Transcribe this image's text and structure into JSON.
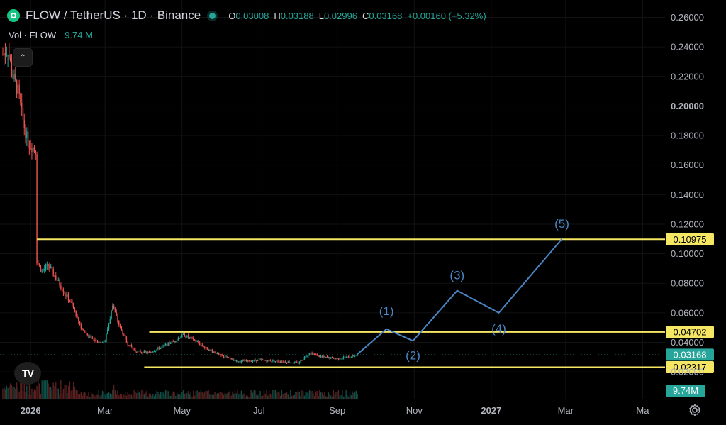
{
  "header": {
    "symbol_title": "FLOW / TetherUS · 1D · Binance",
    "ohlc": [
      {
        "key": "O",
        "value": "0.03008"
      },
      {
        "key": "H",
        "value": "0.03188"
      },
      {
        "key": "L",
        "value": "0.02996"
      },
      {
        "key": "C",
        "value": "0.03168"
      },
      {
        "key": "",
        "value": "+0.00160 (+5.32%)"
      }
    ],
    "volume_label": "Vol · FLOW",
    "volume_value": "9.74 M"
  },
  "colors": {
    "up": "#26a69a",
    "down": "#ef5350",
    "level": "#f5e663",
    "wave": "#4a86c5",
    "grid": "#121212",
    "axis_text": "#b2b5be"
  },
  "icons": {
    "logo": "flow-coin-logo",
    "collapse": "chevron-up-icon",
    "brand": "tradingview-logo",
    "settings": "gear-icon"
  },
  "chart_data": {
    "type": "candlestick",
    "price_axis": {
      "ylim": [
        0.0,
        0.27
      ],
      "ticks": [
        "0.26000",
        "0.24000",
        "0.22000",
        "0.20000",
        "0.18000",
        "0.16000",
        "0.14000",
        "0.12000",
        "0.10000",
        "0.08000",
        "0.06000",
        "0.04000",
        "0.02000"
      ],
      "tick_values": [
        0.26,
        0.24,
        0.22,
        0.2,
        0.18,
        0.16,
        0.14,
        0.12,
        0.1,
        0.08,
        0.06,
        0.04,
        0.02
      ]
    },
    "time_axis": {
      "start": "2025-12-10",
      "end": "2027-05-15",
      "labels": [
        {
          "text": "2026",
          "date": "2026-01-01",
          "bold": true
        },
        {
          "text": "Mar",
          "date": "2026-03-01"
        },
        {
          "text": "May",
          "date": "2026-05-01"
        },
        {
          "text": "Jul",
          "date": "2026-07-01"
        },
        {
          "text": "Sep",
          "date": "2026-09-01"
        },
        {
          "text": "Nov",
          "date": "2026-11-01"
        },
        {
          "text": "2027",
          "date": "2027-01-01",
          "bold": true
        },
        {
          "text": "Mar",
          "date": "2027-03-01"
        },
        {
          "text": "Ma",
          "date": "2027-05-01"
        }
      ]
    },
    "price_path": [
      {
        "date": "2025-12-10",
        "price": 0.235
      },
      {
        "date": "2025-12-14",
        "price": 0.238
      },
      {
        "date": "2025-12-18",
        "price": 0.22
      },
      {
        "date": "2025-12-22",
        "price": 0.21
      },
      {
        "date": "2025-12-26",
        "price": 0.19
      },
      {
        "date": "2025-12-30",
        "price": 0.175
      },
      {
        "date": "2026-01-03",
        "price": 0.172
      },
      {
        "date": "2026-01-05",
        "price": 0.17
      },
      {
        "date": "2026-01-06",
        "price": 0.095
      },
      {
        "date": "2026-01-10",
        "price": 0.088
      },
      {
        "date": "2026-01-15",
        "price": 0.092
      },
      {
        "date": "2026-01-20",
        "price": 0.085
      },
      {
        "date": "2026-01-27",
        "price": 0.075
      },
      {
        "date": "2026-02-03",
        "price": 0.065
      },
      {
        "date": "2026-02-10",
        "price": 0.05
      },
      {
        "date": "2026-02-17",
        "price": 0.043
      },
      {
        "date": "2026-02-24",
        "price": 0.04
      },
      {
        "date": "2026-03-01",
        "price": 0.041
      },
      {
        "date": "2026-03-07",
        "price": 0.065
      },
      {
        "date": "2026-03-12",
        "price": 0.052
      },
      {
        "date": "2026-03-18",
        "price": 0.04
      },
      {
        "date": "2026-03-25",
        "price": 0.034
      },
      {
        "date": "2026-04-05",
        "price": 0.033
      },
      {
        "date": "2026-04-15",
        "price": 0.037
      },
      {
        "date": "2026-04-25",
        "price": 0.041
      },
      {
        "date": "2026-05-02",
        "price": 0.045
      },
      {
        "date": "2026-05-10",
        "price": 0.042
      },
      {
        "date": "2026-05-20",
        "price": 0.036
      },
      {
        "date": "2026-06-01",
        "price": 0.031
      },
      {
        "date": "2026-06-15",
        "price": 0.027
      },
      {
        "date": "2026-07-01",
        "price": 0.028
      },
      {
        "date": "2026-07-20",
        "price": 0.027
      },
      {
        "date": "2026-08-01",
        "price": 0.026
      },
      {
        "date": "2026-08-10",
        "price": 0.033
      },
      {
        "date": "2026-08-20",
        "price": 0.03
      },
      {
        "date": "2026-09-01",
        "price": 0.029
      },
      {
        "date": "2026-09-10",
        "price": 0.03
      },
      {
        "date": "2026-09-17",
        "price": 0.0317
      }
    ],
    "volume": {
      "label_value": "9.74M"
    },
    "levels": [
      {
        "price": 0.10975,
        "label": "0.10975",
        "start": "2026-01-06"
      },
      {
        "price": 0.04702,
        "label": "0.04702",
        "start": "2026-04-05"
      },
      {
        "price": 0.02317,
        "label": "0.02317",
        "start": "2026-04-01"
      }
    ],
    "last_price": {
      "price": 0.03168,
      "label": "0.03168"
    },
    "elliott_wave": {
      "points": [
        {
          "date": "2026-09-17",
          "price": 0.032
        },
        {
          "date": "2026-10-10",
          "price": 0.049,
          "label": "(1)"
        },
        {
          "date": "2026-10-31",
          "price": 0.041,
          "label": "(2)"
        },
        {
          "date": "2026-12-05",
          "price": 0.075,
          "label": "(3)"
        },
        {
          "date": "2027-01-07",
          "price": 0.06,
          "label": "(4)"
        },
        {
          "date": "2027-02-26",
          "price": 0.11,
          "label": "(5)"
        }
      ]
    }
  }
}
